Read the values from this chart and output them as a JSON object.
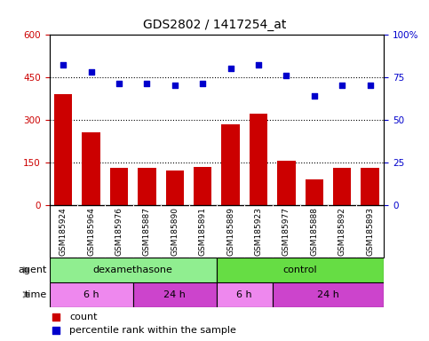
{
  "title": "GDS2802 / 1417254_at",
  "samples": [
    "GSM185924",
    "GSM185964",
    "GSM185976",
    "GSM185887",
    "GSM185890",
    "GSM185891",
    "GSM185889",
    "GSM185923",
    "GSM185977",
    "GSM185888",
    "GSM185892",
    "GSM185893"
  ],
  "counts": [
    390,
    255,
    130,
    130,
    120,
    135,
    285,
    320,
    155,
    90,
    130,
    130
  ],
  "percentile": [
    82,
    78,
    71,
    71,
    70,
    71,
    80,
    82,
    76,
    64,
    70,
    70
  ],
  "ylim_left": [
    0,
    600
  ],
  "ylim_right": [
    0,
    100
  ],
  "yticks_left": [
    0,
    150,
    300,
    450,
    600
  ],
  "yticks_right": [
    0,
    25,
    50,
    75,
    100
  ],
  "bar_color": "#cc0000",
  "dot_color": "#0000cc",
  "agent_groups": [
    {
      "label": "dexamethasone",
      "start": 0,
      "end": 6,
      "color": "#90ee90"
    },
    {
      "label": "control",
      "start": 6,
      "end": 12,
      "color": "#66dd44"
    }
  ],
  "time_groups": [
    {
      "label": "6 h",
      "start": 0,
      "end": 3,
      "color": "#ee88ee"
    },
    {
      "label": "24 h",
      "start": 3,
      "end": 6,
      "color": "#cc44cc"
    },
    {
      "label": "6 h",
      "start": 6,
      "end": 8,
      "color": "#ee88ee"
    },
    {
      "label": "24 h",
      "start": 8,
      "end": 12,
      "color": "#cc44cc"
    }
  ],
  "label_fontsize": 7.5,
  "tick_fontsize": 7.5
}
